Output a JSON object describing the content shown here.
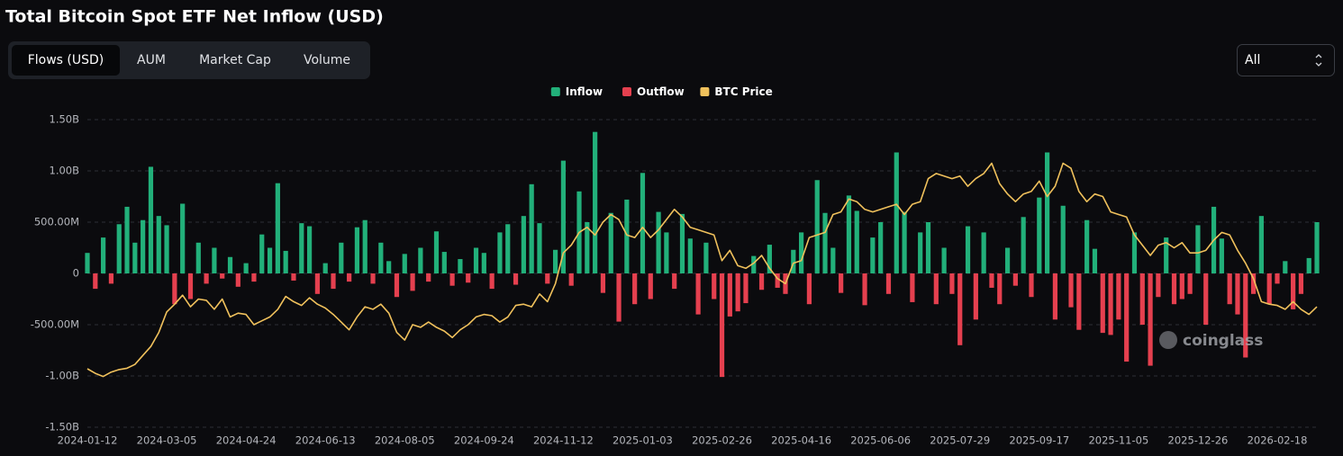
{
  "title": "Total Bitcoin Spot ETF Net Inflow (USD)",
  "tabs": [
    "Flows (USD)",
    "AUM",
    "Market Cap",
    "Volume"
  ],
  "range_select": "All",
  "watermark": "coinglass",
  "chart_data": {
    "type": "bar",
    "categories": [
      "2024-01-12",
      null,
      null,
      null,
      null,
      null,
      null,
      null,
      null,
      null,
      "2024-03-05",
      null,
      null,
      null,
      null,
      null,
      null,
      null,
      null,
      null,
      "2024-04-24",
      null,
      null,
      null,
      null,
      null,
      null,
      null,
      null,
      null,
      "2024-06-13",
      null,
      null,
      null,
      null,
      null,
      null,
      null,
      null,
      null,
      "2024-08-05",
      null,
      null,
      null,
      null,
      null,
      null,
      null,
      null,
      null,
      "2024-09-24",
      null,
      null,
      null,
      null,
      null,
      null,
      null,
      null,
      null,
      "2024-11-12",
      null,
      null,
      null,
      null,
      null,
      null,
      null,
      null,
      null,
      "2025-01-03",
      null,
      null,
      null,
      null,
      null,
      null,
      null,
      null,
      null,
      "2025-02-26",
      null,
      null,
      null,
      null,
      null,
      null,
      null,
      null,
      null,
      "2025-04-16",
      null,
      null,
      null,
      null,
      null,
      null,
      null,
      null,
      null,
      "2025-06-06",
      null,
      null,
      null,
      null,
      null,
      null,
      null,
      null,
      null,
      "2025-07-29",
      null,
      null,
      null,
      null,
      null,
      null,
      null,
      null,
      null,
      "2025-09-17",
      null,
      null,
      null,
      null,
      null,
      null,
      null,
      null,
      null,
      "2025-11-05",
      null,
      null,
      null,
      null,
      null,
      null,
      null,
      null,
      null,
      "2025-12-26",
      null,
      null,
      null,
      null,
      null,
      null,
      null,
      null,
      null,
      "2026-02-18",
      null,
      null,
      null,
      null,
      null
    ],
    "series": [
      {
        "name": "Inflow",
        "color": "#22b07a",
        "values": [
          200000000.0,
          null,
          350000000.0,
          null,
          480000000.0,
          650000000.0,
          300000000.0,
          520000000.0,
          1040000000.0,
          560000000.0,
          470000000.0,
          null,
          680000000.0,
          null,
          300000000.0,
          null,
          250000000.0,
          null,
          160000000.0,
          null,
          100000000.0,
          null,
          380000000.0,
          250000000.0,
          880000000.0,
          220000000.0,
          null,
          490000000.0,
          460000000.0,
          null,
          100000000.0,
          null,
          300000000.0,
          null,
          450000000.0,
          520000000.0,
          null,
          300000000.0,
          120000000.0,
          null,
          190000000.0,
          null,
          250000000.0,
          null,
          410000000.0,
          210000000.0,
          null,
          140000000.0,
          null,
          250000000.0,
          200000000.0,
          null,
          400000000.0,
          480000000.0,
          null,
          560000000.0,
          870000000.0,
          490000000.0,
          null,
          230000000.0,
          1100000000.0,
          null,
          800000000.0,
          500000000.0,
          1380000000.0,
          null,
          590000000.0,
          null,
          720000000.0,
          null,
          980000000.0,
          null,
          600000000.0,
          400000000.0,
          null,
          580000000.0,
          340000000.0,
          null,
          300000000.0,
          null,
          null,
          null,
          null,
          null,
          170000000.0,
          null,
          280000000.0,
          null,
          null,
          230000000.0,
          400000000.0,
          null,
          910000000.0,
          590000000.0,
          250000000.0,
          null,
          760000000.0,
          610000000.0,
          null,
          350000000.0,
          500000000.0,
          null,
          1180000000.0,
          600000000.0,
          null,
          400000000.0,
          500000000.0,
          null,
          250000000.0,
          null,
          null,
          460000000.0,
          null,
          400000000.0,
          null,
          null,
          250000000.0,
          null,
          550000000.0,
          null,
          740000000.0,
          1180000000.0,
          null,
          660000000.0,
          null,
          null,
          520000000.0,
          240000000.0,
          null,
          null,
          null,
          null,
          400000000.0,
          null,
          null,
          null,
          350000000.0,
          null,
          null,
          null,
          470000000.0,
          null,
          650000000.0,
          340000000.0,
          null,
          null,
          null,
          null,
          560000000.0,
          null,
          null,
          120000000.0,
          null,
          null,
          150000000.0,
          500000000.0
        ]
      },
      {
        "name": "Outflow",
        "color": "#e5404f",
        "values": [
          null,
          -150000000.0,
          null,
          -100000000.0,
          null,
          null,
          null,
          null,
          null,
          null,
          null,
          -300000000.0,
          null,
          -250000000.0,
          null,
          -100000000.0,
          null,
          -50000000.0,
          null,
          -130000000.0,
          null,
          -80000000.0,
          null,
          null,
          null,
          null,
          -70000000.0,
          null,
          null,
          -200000000.0,
          null,
          -150000000.0,
          null,
          -80000000.0,
          null,
          null,
          -100000000.0,
          null,
          null,
          -230000000.0,
          null,
          -170000000.0,
          null,
          -80000000.0,
          null,
          null,
          -120000000.0,
          null,
          -90000000.0,
          null,
          null,
          -150000000.0,
          null,
          null,
          -110000000.0,
          null,
          null,
          null,
          -100000000.0,
          null,
          null,
          -120000000.0,
          null,
          null,
          null,
          -190000000.0,
          null,
          -470000000.0,
          null,
          -300000000.0,
          null,
          -250000000.0,
          null,
          null,
          -150000000.0,
          null,
          null,
          -400000000.0,
          null,
          -250000000.0,
          -1010000000.0,
          -420000000.0,
          -370000000.0,
          -290000000.0,
          null,
          -160000000.0,
          null,
          -140000000.0,
          -200000000.0,
          null,
          null,
          -300000000.0,
          null,
          null,
          null,
          -190000000.0,
          null,
          null,
          -310000000.0,
          null,
          null,
          -200000000.0,
          null,
          null,
          -280000000.0,
          null,
          null,
          -300000000.0,
          null,
          -200000000.0,
          -700000000.0,
          null,
          -450000000.0,
          null,
          -140000000.0,
          -300000000.0,
          null,
          -120000000.0,
          null,
          -230000000.0,
          null,
          null,
          -450000000.0,
          null,
          -330000000.0,
          -550000000.0,
          null,
          null,
          -580000000.0,
          -600000000.0,
          -450000000.0,
          -860000000.0,
          null,
          -500000000.0,
          -900000000.0,
          -230000000.0,
          null,
          -300000000.0,
          -250000000.0,
          -200000000.0,
          null,
          -500000000.0,
          null,
          null,
          -300000000.0,
          -400000000.0,
          -820000000.0,
          -200000000.0,
          null,
          -300000000.0,
          -100000000.0,
          null,
          -350000000.0,
          -200000000.0,
          null,
          null
        ]
      },
      {
        "name": "BTC Price",
        "color": "#f0c15c",
        "type": "line",
        "axis": "y2",
        "values": [
          42800,
          41000,
          39800,
          41500,
          42500,
          43000,
          44500,
          48000,
          51500,
          57000,
          65000,
          68000,
          71500,
          67000,
          70000,
          69500,
          66000,
          70000,
          63000,
          64500,
          64000,
          60000,
          61500,
          63000,
          66000,
          71000,
          69000,
          67500,
          70500,
          68000,
          66500,
          64000,
          61000,
          58000,
          63000,
          67000,
          66000,
          68000,
          64500,
          57000,
          54000,
          60000,
          59000,
          61000,
          59000,
          57500,
          55000,
          58000,
          60000,
          63000,
          64000,
          63500,
          61000,
          63000,
          67500,
          68000,
          67000,
          72000,
          69000,
          76000,
          88000,
          91000,
          96000,
          98000,
          95000,
          100000,
          103000,
          101000,
          95000,
          94000,
          98000,
          94000,
          97000,
          101000,
          105000,
          102000,
          98000,
          97000,
          96000,
          95000,
          85000,
          89000,
          83000,
          82000,
          84000,
          87000,
          82000,
          78000,
          76000,
          84000,
          85000,
          94000,
          95000,
          96000,
          103000,
          104000,
          109000,
          108000,
          105000,
          104000,
          105000,
          106000,
          107000,
          103000,
          107000,
          108000,
          117000,
          119000,
          118000,
          117000,
          118000,
          114000,
          117000,
          119000,
          123000,
          115000,
          111000,
          108000,
          111000,
          112000,
          116000,
          110000,
          114000,
          123000,
          121000,
          112000,
          108000,
          111000,
          110000,
          104000,
          103000,
          102000,
          95000,
          91000,
          87000,
          91000,
          92000,
          90000,
          92000,
          88000,
          88000,
          89000,
          93000,
          96000,
          95000,
          89000,
          84000,
          78000,
          69000,
          68000,
          67500,
          66000,
          69000,
          66000,
          64000,
          67000
        ]
      }
    ],
    "ylim": [
      -1500000000.0,
      1500000000.0
    ],
    "yticks": [
      {
        "value": -1500000000.0,
        "label": "-1.50B"
      },
      {
        "value": -1000000000.0,
        "label": "-1.00B"
      },
      {
        "value": -500000000.0,
        "label": "-500.00M"
      },
      0,
      {
        "value": 500000000.0,
        "label": "500.00M"
      },
      {
        "value": 1000000000.0,
        "label": "1.00B"
      },
      {
        "value": 1500000000.0,
        "label": "1.50B"
      }
    ],
    "y2lim": [
      20000,
      140000
    ],
    "grid": true
  }
}
